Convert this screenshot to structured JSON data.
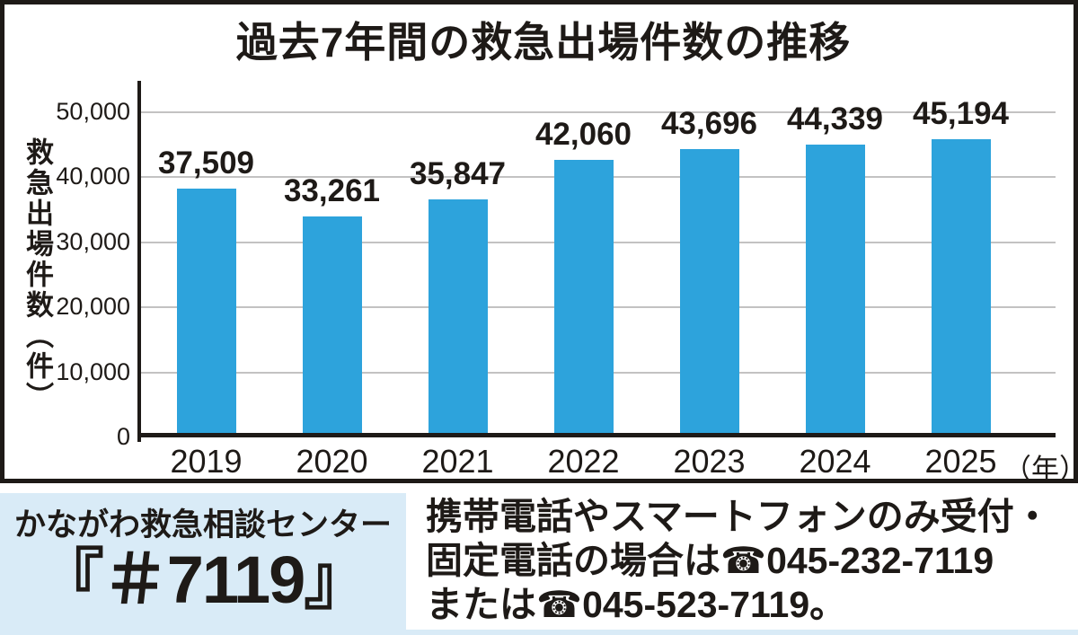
{
  "chart": {
    "title": "過去7年間の救急出場件数の推移",
    "ylabel": "救急出場件数（件）",
    "x_unit": "（年）"
  },
  "chart_data": {
    "type": "bar",
    "categories": [
      "2019",
      "2020",
      "2021",
      "2022",
      "2023",
      "2024",
      "2025"
    ],
    "values": [
      37509,
      33261,
      35847,
      42060,
      43696,
      44339,
      45194
    ],
    "value_labels": [
      "37,509",
      "33,261",
      "35,847",
      "42,060",
      "43,696",
      "44,339",
      "45,194"
    ],
    "title": "過去7年間の救急出場件数の推移",
    "xlabel": "年",
    "ylabel": "救急出場件数（件）",
    "ylim": [
      0,
      50000
    ],
    "yticks": [
      "50,000",
      "40,000",
      "30,000",
      "20,000",
      "10,000",
      "0"
    ],
    "grid": true,
    "legend": null,
    "bar_color": "#2da3dc"
  },
  "footer": {
    "center_name": "かながわ救急相談センター",
    "center_code": "『＃7119』",
    "phone_icon": "☎",
    "note_line1": "携帯電話やスマートフォンのみ受付・",
    "note_line2_prefix": "固定電話の場合は",
    "note_line2_phone": "045-232-7119",
    "note_line3_prefix": "または",
    "note_line3_phone": "045-523-7119",
    "note_line3_suffix": "。"
  },
  "colors": {
    "bar": "#2da3dc",
    "text": "#1e1a17",
    "gridline": "#c3c2c2",
    "footer_bg": "#d9ebf7"
  }
}
